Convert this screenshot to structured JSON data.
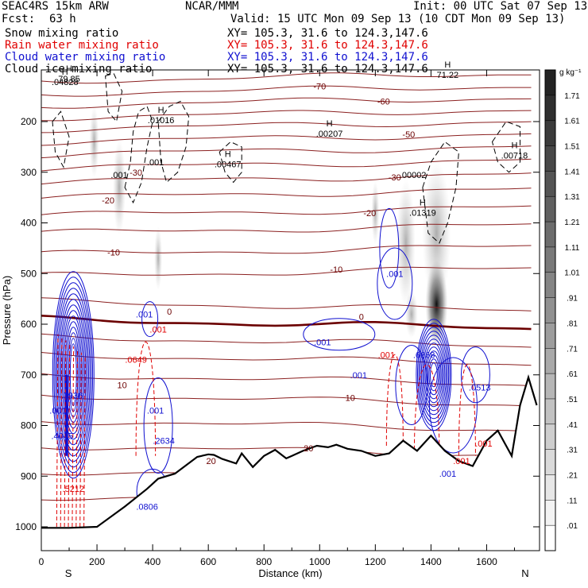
{
  "header": {
    "model": "SEAC4RS 15km ARW",
    "org": "NCAR/MMM",
    "init": "Init: 00 UTC Sat 07 Sep 13",
    "fcst_label": "Fcst:",
    "fcst_value": "63 h",
    "valid": "Valid: 15 UTC Mon 09 Sep 13 (10 CDT Mon 09 Sep 13)"
  },
  "fields": [
    {
      "name": "Snow mixing ratio",
      "xy": "XY= 105.3, 31.6 to 124.3,147.6",
      "color": "#000000"
    },
    {
      "name": "Rain water mixing ratio",
      "xy": "XY= 105.3, 31.6 to 124.3,147.6",
      "color": "#e00000"
    },
    {
      "name": "Cloud water mixing ratio",
      "xy": "XY= 105.3, 31.6 to 124.3,147.6",
      "color": "#1010d0"
    },
    {
      "name": "Cloud ice mixing ratio",
      "xy": "XY= 105.3, 31.6 to 124.3,147.6",
      "color": "#000000"
    }
  ],
  "chart_data": {
    "type": "cross-section",
    "xlabel": "Distance (km)",
    "ylabel": "Pressure (hPa)",
    "xlim": [
      0,
      1790
    ],
    "ylim": [
      1000,
      100
    ],
    "x_ticks": [
      0,
      200,
      400,
      600,
      800,
      1000,
      1200,
      1400,
      1600
    ],
    "y_ticks": [
      200,
      300,
      400,
      500,
      600,
      700,
      800,
      900,
      1000
    ],
    "end_labels": {
      "left": "S",
      "right": "N"
    },
    "colorbar": {
      "unit": "g kg⁻¹",
      "labels": [
        ".01",
        ".11",
        ".21",
        ".31",
        ".41",
        ".51",
        ".61",
        ".71",
        ".81",
        ".91",
        "1.01",
        "1.11",
        "1.21",
        "1.31",
        "1.41",
        "1.51",
        "1.61",
        "1.71"
      ]
    },
    "temperature_labels": [
      {
        "x": 1000,
        "p": 130,
        "t": "-70"
      },
      {
        "x": 1230,
        "p": 160,
        "t": "-60"
      },
      {
        "x": 1320,
        "p": 225,
        "t": "-50"
      },
      {
        "x": 340,
        "p": 300,
        "t": "-30"
      },
      {
        "x": 1270,
        "p": 310,
        "t": "-30"
      },
      {
        "x": 240,
        "p": 355,
        "t": "-20"
      },
      {
        "x": 1180,
        "p": 380,
        "t": "-20"
      },
      {
        "x": 260,
        "p": 458,
        "t": "-10"
      },
      {
        "x": 1060,
        "p": 492,
        "t": "-10"
      },
      {
        "x": 460,
        "p": 575,
        "t": "0"
      },
      {
        "x": 1150,
        "p": 585,
        "t": "0"
      },
      {
        "x": 290,
        "p": 720,
        "t": "10"
      },
      {
        "x": 1110,
        "p": 745,
        "t": "10"
      },
      {
        "x": 610,
        "p": 870,
        "t": "20"
      },
      {
        "x": 960,
        "p": 845,
        "t": "20"
      }
    ],
    "terrain_km": [
      0,
      100,
      200,
      300,
      380,
      420,
      480,
      560,
      600,
      620,
      650,
      700,
      720,
      760,
      800,
      840,
      880,
      900,
      940,
      990,
      1030,
      1060,
      1100,
      1150,
      1200,
      1250,
      1300,
      1350,
      1400,
      1450,
      1500,
      1550,
      1600,
      1640,
      1690,
      1720,
      1750,
      1780
    ],
    "terrain_hpa": [
      1002,
      1002,
      1000,
      960,
      925,
      905,
      895,
      862,
      857,
      858,
      866,
      875,
      855,
      882,
      860,
      848,
      865,
      860,
      850,
      840,
      843,
      838,
      846,
      850,
      860,
      855,
      830,
      850,
      820,
      850,
      870,
      880,
      830,
      810,
      860,
      760,
      705,
      760
    ],
    "snow_labels": [
      {
        "x": 280,
        "p": 305,
        "t": ".001"
      },
      {
        "x": 410,
        "p": 280,
        "t": ".001"
      },
      {
        "x": 1335,
        "p": 305,
        "t": ".00002"
      }
    ],
    "rain_labels": [
      {
        "x": 115,
        "p": 925,
        "t": ".5212"
      },
      {
        "x": 340,
        "p": 670,
        "t": ".0649"
      },
      {
        "x": 420,
        "p": 610,
        "t": ".001"
      },
      {
        "x": 1240,
        "p": 660,
        "t": ".001"
      },
      {
        "x": 1510,
        "p": 870,
        "t": ".001"
      },
      {
        "x": 1590,
        "p": 835,
        "t": ".001"
      }
    ],
    "cloud_labels": [
      {
        "x": 110,
        "p": 740,
        "t": ".7936"
      },
      {
        "x": 60,
        "p": 770,
        "t": ".001"
      },
      {
        "x": 75,
        "p": 820,
        "t": ".4045"
      },
      {
        "x": 370,
        "p": 580,
        "t": ".001"
      },
      {
        "x": 410,
        "p": 770,
        "t": ".001"
      },
      {
        "x": 440,
        "p": 830,
        "t": ".2634"
      },
      {
        "x": 380,
        "p": 960,
        "t": ".0806"
      },
      {
        "x": 1010,
        "p": 635,
        "t": ".001"
      },
      {
        "x": 1140,
        "p": 700,
        "t": ".001"
      },
      {
        "x": 1270,
        "p": 500,
        "t": ".001"
      },
      {
        "x": 1375,
        "p": 660,
        "t": ".6668"
      },
      {
        "x": 1460,
        "p": 895,
        "t": ".001"
      },
      {
        "x": 1575,
        "p": 725,
        "t": ".0513"
      }
    ],
    "max_labels": [
      {
        "x": 85,
        "p": 120,
        "t": ".04828"
      },
      {
        "x": 430,
        "p": 195,
        "t": ".01016"
      },
      {
        "x": 670,
        "p": 282,
        "t": ".00467"
      },
      {
        "x": 1035,
        "p": 222,
        "t": ".00207"
      },
      {
        "x": 1370,
        "p": 378,
        "t": ".01319"
      },
      {
        "x": 1700,
        "p": 265,
        "t": ".00718"
      },
      {
        "x": 1460,
        "p": 106,
        "t": "71.22"
      },
      {
        "x": 100,
        "p": 114,
        "t": "79.85"
      }
    ]
  }
}
